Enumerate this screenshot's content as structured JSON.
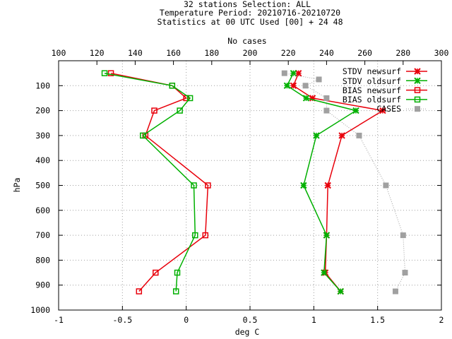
{
  "chart_data": {
    "type": "line",
    "title": [
      "32 stations Selection: ALL",
      "Temperature  Period: 20210716-20210720",
      "Statistics at 00 UTC  Used [00] + 24 48"
    ],
    "xlabel": "deg C",
    "ylabel": "hPa",
    "x2label": "No cases",
    "xlim": [
      -1,
      2
    ],
    "x2lim": [
      100,
      300
    ],
    "ylim": [
      1000,
      0
    ],
    "xticks": [
      "-1",
      "-0.5",
      "0",
      "0.5",
      "1",
      "1.5",
      "2"
    ],
    "xtick_values": [
      -1,
      -0.5,
      0,
      0.5,
      1,
      1.5,
      2
    ],
    "x2ticks": [
      "100",
      "120",
      "140",
      "160",
      "180",
      "200",
      "220",
      "240",
      "260",
      "280",
      "300"
    ],
    "x2tick_values": [
      100,
      120,
      140,
      160,
      180,
      200,
      220,
      240,
      260,
      280,
      300
    ],
    "yticks": [
      "100",
      "200",
      "300",
      "400",
      "500",
      "600",
      "700",
      "800",
      "900",
      "1000"
    ],
    "ytick_values": [
      100,
      200,
      300,
      400,
      500,
      600,
      700,
      800,
      900,
      1000
    ],
    "grid": true,
    "legend_position": "top-right",
    "series": [
      {
        "name": "STDV newsurf",
        "color": "#e8000b",
        "marker": "x-cross",
        "axis": "x",
        "points": [
          [
            0.88,
            50
          ],
          [
            0.84,
            100
          ],
          [
            0.99,
            150
          ],
          [
            1.54,
            200
          ],
          [
            1.22,
            300
          ],
          [
            1.11,
            500
          ],
          [
            1.1,
            700
          ],
          [
            1.09,
            850
          ],
          [
            1.21,
            925
          ]
        ]
      },
      {
        "name": "STDV oldsurf",
        "color": "#00b000",
        "marker": "x-cross",
        "axis": "x",
        "points": [
          [
            0.84,
            50
          ],
          [
            0.79,
            100
          ],
          [
            0.94,
            150
          ],
          [
            1.33,
            200
          ],
          [
            1.02,
            300
          ],
          [
            0.92,
            500
          ],
          [
            1.1,
            700
          ],
          [
            1.08,
            850
          ],
          [
            1.21,
            925
          ]
        ]
      },
      {
        "name": "BIAS newsurf",
        "color": "#e8000b",
        "marker": "open-square",
        "axis": "x",
        "points": [
          [
            -0.59,
            50
          ],
          [
            -0.11,
            100
          ],
          [
            0.0,
            150
          ],
          [
            -0.25,
            200
          ],
          [
            -0.32,
            300
          ],
          [
            0.17,
            500
          ],
          [
            0.15,
            700
          ],
          [
            -0.24,
            850
          ],
          [
            -0.37,
            925
          ]
        ]
      },
      {
        "name": "BIAS oldsurf",
        "color": "#00b000",
        "marker": "open-square",
        "axis": "x",
        "points": [
          [
            -0.64,
            50
          ],
          [
            -0.11,
            100
          ],
          [
            0.03,
            150
          ],
          [
            -0.05,
            200
          ],
          [
            -0.34,
            300
          ],
          [
            0.06,
            500
          ],
          [
            0.07,
            700
          ],
          [
            -0.07,
            850
          ],
          [
            -0.08,
            925
          ]
        ]
      },
      {
        "name": "CASES",
        "color": "#a0a0a0",
        "marker": "filled-square",
        "axis": "x2",
        "line": "dotted",
        "points": [
          [
            218,
            50
          ],
          [
            236,
            75
          ],
          [
            229,
            100
          ],
          [
            240,
            150
          ],
          [
            240,
            200
          ],
          [
            257,
            300
          ],
          [
            271,
            500
          ],
          [
            280,
            700
          ],
          [
            281,
            850
          ],
          [
            276,
            925
          ]
        ]
      }
    ]
  }
}
